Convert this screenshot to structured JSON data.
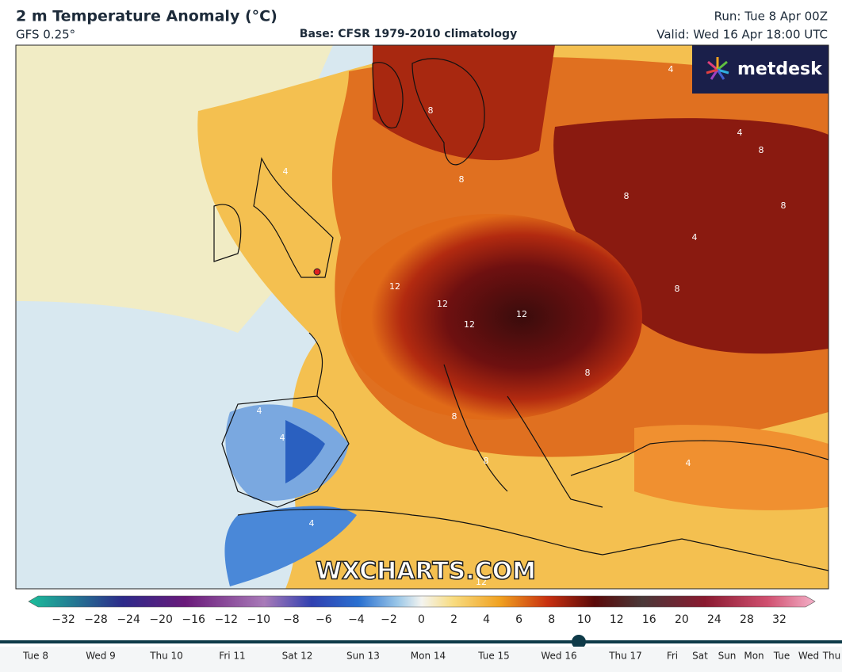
{
  "header": {
    "title": "2 m Temperature Anomaly (°C)",
    "model": "GFS 0.25°",
    "base": "Base: CFSR 1979-2010 climatology",
    "run": "Run: Tue 8 Apr 00Z",
    "valid": "Valid: Wed 16 Apr 18:00 UTC"
  },
  "logo": "metdesk",
  "watermark": "WXCHARTS.COM",
  "map_labels": [
    "4",
    "4",
    "8",
    "8",
    "8",
    "4",
    "8",
    "8",
    "8",
    "8",
    "12",
    "12",
    "12",
    "12",
    "8",
    "4",
    "4",
    "4",
    "4",
    "8",
    "4",
    "12"
  ],
  "colorbar": {
    "labels": [
      "−32",
      "−28",
      "−24",
      "−20",
      "−16",
      "−12",
      "−10",
      "−8",
      "−6",
      "−4",
      "−2",
      "0",
      "2",
      "4",
      "6",
      "8",
      "10",
      "12",
      "16",
      "20",
      "24",
      "28",
      "32"
    ]
  },
  "timeline": [
    "Tue 8",
    "Wed 9",
    "Thu 10",
    "Fri 11",
    "Sat 12",
    "Sun 13",
    "Mon 14",
    "Tue 15",
    "Wed 16",
    "Thu 17",
    "Fri",
    "Sat",
    "Sun",
    "Mon",
    "Tue",
    "Wed",
    "Thu"
  ]
}
